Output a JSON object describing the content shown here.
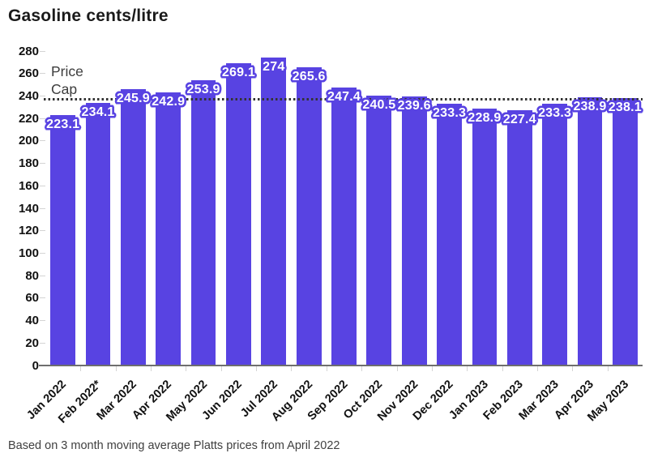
{
  "title": "Gasoline cents/litre",
  "source_note": "Based on 3 month moving average Platts prices from April 2022",
  "price_cap": {
    "label": "Price Cap",
    "value": 237
  },
  "colors": {
    "bar": "#5843e2",
    "value_label_text": "#ffffff",
    "price_cap_line": "#333333",
    "axis_text": "#111111",
    "title_text": "#1a1a1a",
    "note_text": "#404040"
  },
  "chart_data": {
    "type": "bar",
    "title": "Gasoline cents/litre",
    "categories": [
      "Jan 2022",
      "Feb 2022*",
      "Mar 2022",
      "Apr 2022",
      "May 2022",
      "Jun 2022",
      "Jul 2022",
      "Aug 2022",
      "Sep 2022",
      "Oct 2022",
      "Nov 2022",
      "Dec 2022",
      "Jan 2023",
      "Feb 2023",
      "Mar 2023",
      "Apr 2023",
      "May 2023"
    ],
    "values": [
      223.1,
      234.1,
      245.9,
      242.9,
      253.9,
      269.1,
      274,
      265.6,
      247.4,
      240.5,
      239.6,
      233.3,
      228.9,
      227.4,
      233.3,
      238.9,
      238.1
    ],
    "xlabel": "",
    "ylabel": "",
    "ylim": [
      0,
      280
    ],
    "ytick_step": 20,
    "grid": false,
    "legend": "none",
    "bar_labels": true,
    "annotations": [
      {
        "type": "hline",
        "label": "Price Cap",
        "value": 237,
        "line_style": "dotted"
      }
    ]
  }
}
